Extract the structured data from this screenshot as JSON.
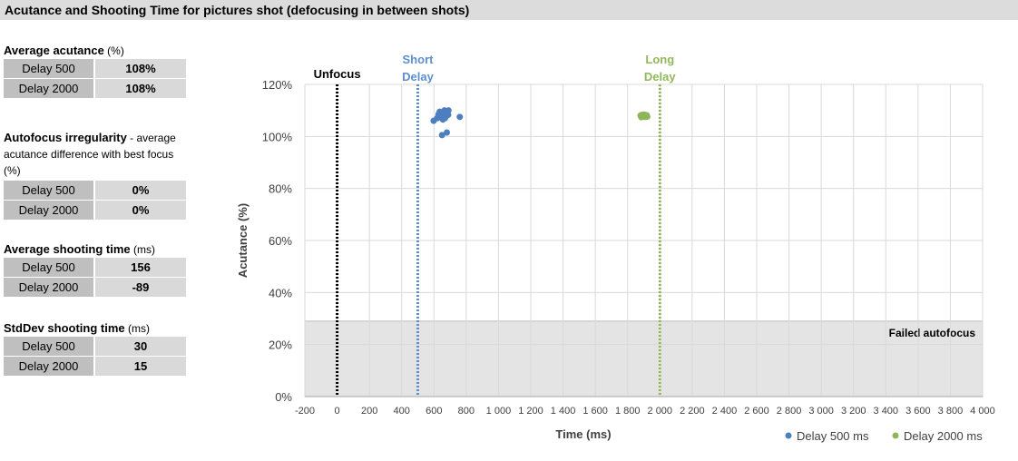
{
  "header": {
    "title": "Acutance and Shooting Time for pictures shot (defocusing in between shots)"
  },
  "stats": [
    {
      "title_bold": "Average acutance",
      "title_rest": " (%)",
      "rows": [
        {
          "label": "Delay 500",
          "value": "108%"
        },
        {
          "label": "Delay 2000",
          "value": "108%"
        }
      ]
    },
    {
      "title_bold": "Autofocus irregularity",
      "title_rest": " - average acutance difference with best focus (%)",
      "rows": [
        {
          "label": "Delay 500",
          "value": "0%"
        },
        {
          "label": "Delay 2000",
          "value": "0%"
        }
      ]
    },
    {
      "title_bold": "Average shooting time",
      "title_rest": " (ms)",
      "rows": [
        {
          "label": "Delay 500",
          "value": "156"
        },
        {
          "label": "Delay 2000",
          "value": "-89"
        }
      ]
    },
    {
      "title_bold": "StdDev shooting time",
      "title_rest": " (ms)",
      "rows": [
        {
          "label": "Delay 500",
          "value": "30"
        },
        {
          "label": "Delay 2000",
          "value": "15"
        }
      ]
    }
  ],
  "chart_data": {
    "type": "scatter",
    "xlabel": "Time (ms)",
    "ylabel": "Acutance (%)",
    "xlim": [
      -200,
      4000
    ],
    "ylim": [
      0,
      120
    ],
    "x_ticks": [
      -200,
      0,
      200,
      400,
      600,
      800,
      1000,
      1200,
      1400,
      1600,
      1800,
      2000,
      2200,
      2400,
      2600,
      2800,
      3000,
      3200,
      3400,
      3600,
      3800,
      4000
    ],
    "x_tick_labels": [
      "-200",
      "0",
      "200",
      "400",
      "600",
      "800",
      "1 000",
      "1 200",
      "1 400",
      "1 600",
      "1 800",
      "2 000",
      "2 200",
      "2 400",
      "2 600",
      "2 800",
      "3 000",
      "3 200",
      "3 400",
      "3 600",
      "3 800",
      "4 000"
    ],
    "y_ticks": [
      0,
      20,
      40,
      60,
      80,
      100,
      120
    ],
    "y_tick_labels": [
      "0%",
      "20%",
      "40%",
      "60%",
      "80%",
      "100%",
      "120%"
    ],
    "grid": true,
    "legend_position": "bottom-right",
    "failed_zone": {
      "y_max": 29,
      "label": "Failed autofocus",
      "color": "#e4e4e4"
    },
    "vlines": [
      {
        "x": 0,
        "label": "Unfocus",
        "color": "#000000"
      },
      {
        "x": 500,
        "label": "Short Delay",
        "color": "#5b8fd0"
      },
      {
        "x": 2000,
        "label": "Long Delay",
        "color": "#92b85c"
      }
    ],
    "series": [
      {
        "name": "Delay 500 ms",
        "color": "#4d7fc0",
        "points": [
          [
            598,
            106
          ],
          [
            620,
            107
          ],
          [
            628,
            108.5
          ],
          [
            636,
            109.5
          ],
          [
            640,
            108
          ],
          [
            645,
            107.5
          ],
          [
            650,
            109
          ],
          [
            655,
            106.5
          ],
          [
            660,
            108.5
          ],
          [
            665,
            110
          ],
          [
            668,
            107
          ],
          [
            672,
            109
          ],
          [
            678,
            108
          ],
          [
            682,
            109.5
          ],
          [
            688,
            108.3
          ],
          [
            690,
            110
          ],
          [
            676,
            107.8
          ],
          [
            760,
            107.5
          ],
          [
            650,
            100.5
          ],
          [
            680,
            101.5
          ]
        ]
      },
      {
        "name": "Delay 2000 ms",
        "color": "#8db55a",
        "points": [
          [
            1880,
            108
          ],
          [
            1885,
            107.4
          ],
          [
            1890,
            108.3
          ],
          [
            1893,
            107.6
          ],
          [
            1897,
            108.1
          ],
          [
            1900,
            107.7
          ],
          [
            1903,
            108.4
          ],
          [
            1907,
            107.5
          ],
          [
            1910,
            108
          ],
          [
            1914,
            107.7
          ],
          [
            1918,
            108.2
          ],
          [
            1922,
            107.6
          ],
          [
            1887,
            107.9
          ],
          [
            1905,
            108
          ]
        ]
      }
    ]
  }
}
